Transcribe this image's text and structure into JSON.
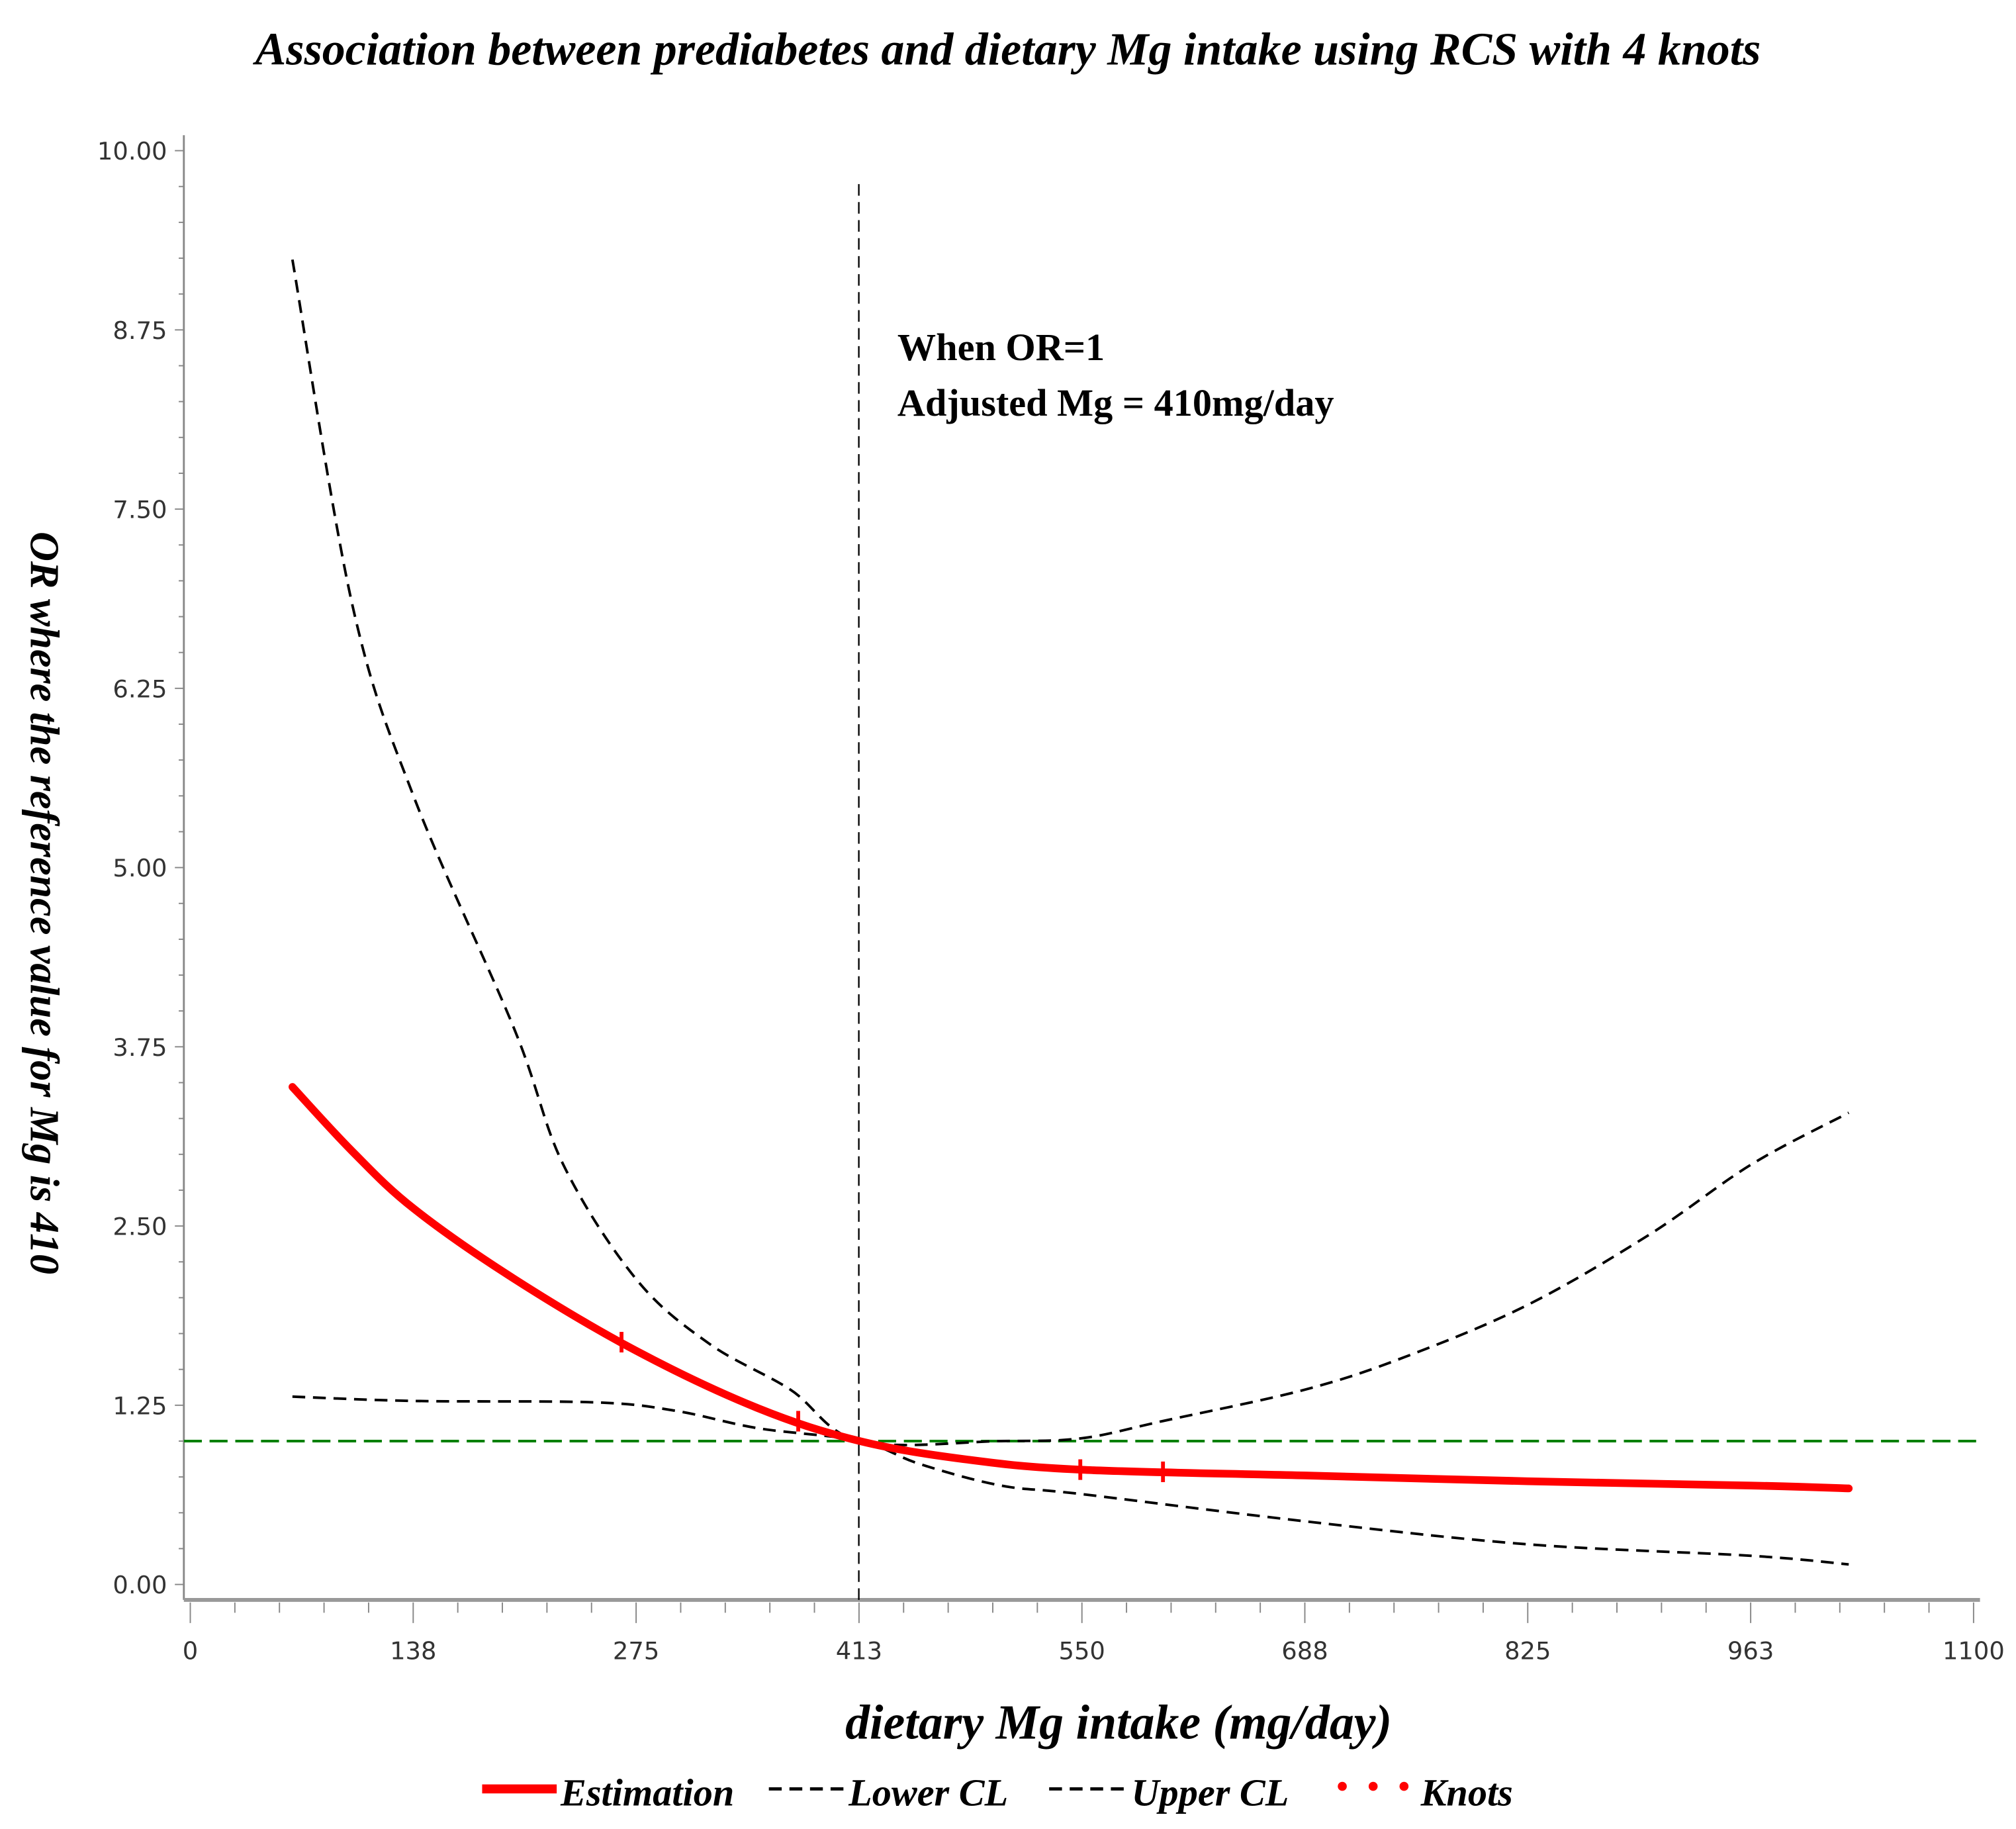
{
  "chart_data": {
    "type": "line",
    "title": "Association between prediabetes and dietary Mg intake using RCS with 4 knots",
    "xlabel": "dietary Mg intake (mg/day)",
    "ylabel": "OR where the reference value for Mg is 410",
    "xlim": [
      0,
      1100
    ],
    "ylim": [
      0,
      10
    ],
    "x_ticks": [
      "0",
      "138",
      "275",
      "413",
      "550",
      "688",
      "825",
      "963",
      "1100"
    ],
    "y_ticks": [
      "0.00",
      "1.25",
      "2.50",
      "3.75",
      "5.00",
      "6.25",
      "7.50",
      "8.75",
      "10.00"
    ],
    "grid": false,
    "reference_x": 410,
    "reference_y": 1,
    "annotation": [
      "When OR=1",
      "Adjusted Mg = 410mg/day"
    ],
    "legend_position": "bottom",
    "colors": {
      "estimation": "#ff0000",
      "ci": "#000000",
      "reference_y": "#008000",
      "reference_x": "#000000",
      "knots": "#ff0000"
    },
    "series": [
      {
        "name": "Estimation",
        "style": "solid",
        "x": [
          63,
          100,
          138,
          200,
          275,
          350,
          413,
          480,
          550,
          688,
          825,
          963,
          1023
        ],
        "y": [
          3.47,
          3.02,
          2.62,
          2.13,
          1.63,
          1.23,
          1.0,
          0.87,
          0.8,
          0.76,
          0.72,
          0.69,
          0.67
        ]
      },
      {
        "name": "Lower CL",
        "style": "dashed",
        "x": [
          63,
          138,
          250,
          300,
          350,
          413,
          450,
          500,
          550,
          688,
          825,
          963,
          1023
        ],
        "y": [
          1.31,
          1.28,
          1.27,
          1.21,
          1.09,
          1.0,
          0.84,
          0.69,
          0.63,
          0.44,
          0.28,
          0.2,
          0.14
        ]
      },
      {
        "name": "Upper CL",
        "style": "dashed",
        "x": [
          63,
          100,
          138,
          200,
          230,
          275,
          320,
          370,
          413,
          500,
          550,
          600,
          688,
          750,
          825,
          900,
          963,
          1023
        ],
        "y": [
          9.24,
          6.83,
          5.49,
          3.87,
          2.93,
          2.13,
          1.68,
          1.36,
          1.0,
          1.0,
          1.02,
          1.14,
          1.36,
          1.59,
          1.95,
          2.44,
          2.93,
          3.29
        ]
      }
    ],
    "knots": {
      "name": "Knots",
      "x": [
        266,
        375,
        549,
        600
      ]
    }
  }
}
